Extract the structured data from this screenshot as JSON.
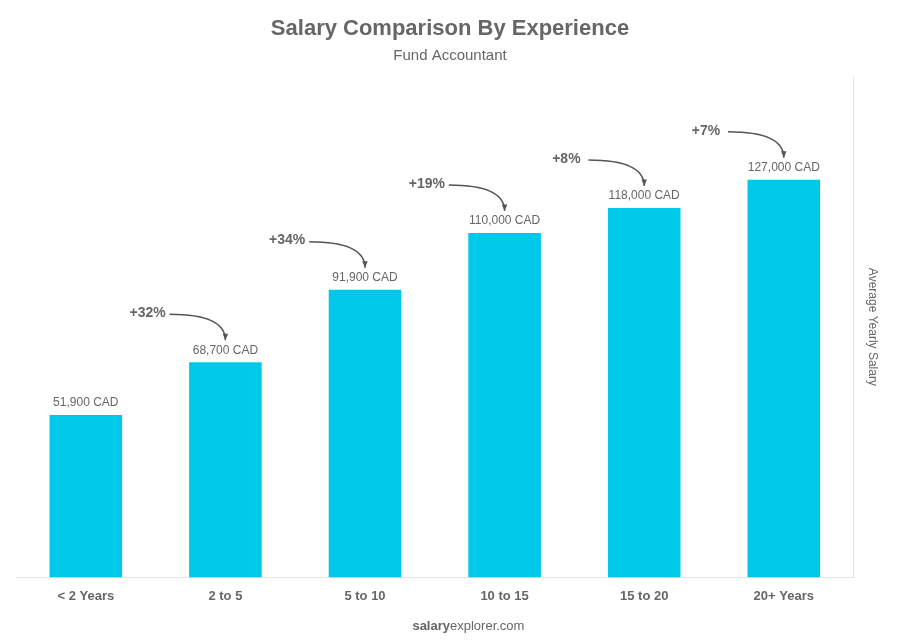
{
  "chart_data": {
    "type": "bar",
    "title": "Salary Comparison By Experience",
    "subtitle": "Fund Accountant",
    "ylabel": "Average Yearly Salary",
    "categories": [
      "< 2 Years",
      "2 to 5",
      "5 to 10",
      "10 to 15",
      "15 to 20",
      "20+ Years"
    ],
    "values": [
      51900,
      68700,
      91900,
      110000,
      118000,
      127000
    ],
    "value_labels": [
      "51,900 CAD",
      "68,700 CAD",
      "91,900 CAD",
      "110,000 CAD",
      "118,000 CAD",
      "127,000 CAD"
    ],
    "data_labels": true,
    "annotations": [
      "+32%",
      "+34%",
      "+19%",
      "+8%",
      "+7%"
    ],
    "footer": [
      "salary",
      "explorer.com"
    ],
    "color": "#00c8e8",
    "ylim": [
      0,
      160000
    ],
    "grid": false,
    "tick_labels": "x"
  }
}
